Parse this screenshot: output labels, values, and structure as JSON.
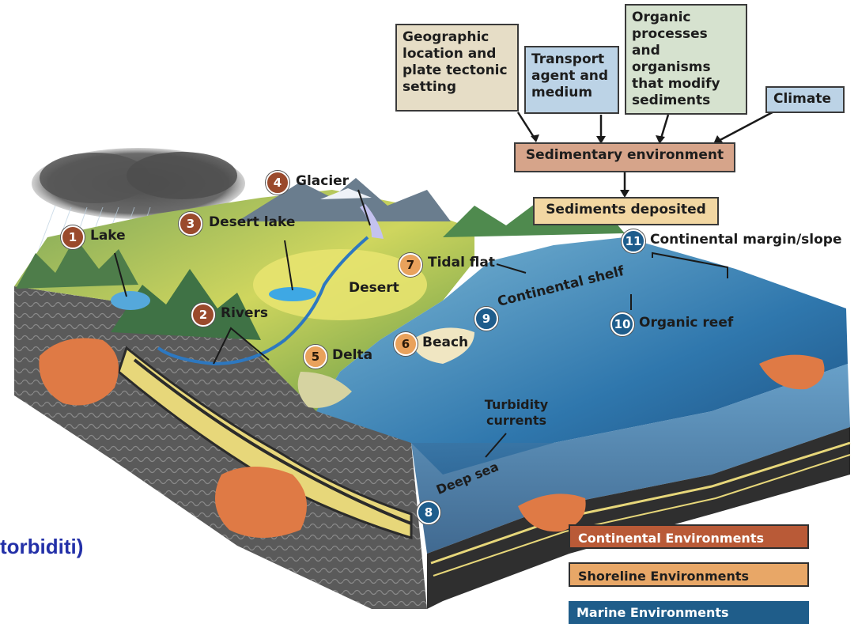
{
  "factors": {
    "geographic": "Geographic location and plate tectonic setting",
    "transport": "Transport agent and medium",
    "organic": "Organic processes and organisms that modify sediments",
    "climate": "Climate"
  },
  "flow": {
    "environment": "Sedimentary environment",
    "deposited": "Sediments deposited"
  },
  "environments": {
    "lake": {
      "num": "1",
      "label": "Lake"
    },
    "rivers": {
      "num": "2",
      "label": "Rivers"
    },
    "desert_lake": {
      "num": "3",
      "label": "Desert lake"
    },
    "glacier": {
      "num": "4",
      "label": "Glacier"
    },
    "delta": {
      "num": "5",
      "label": "Delta"
    },
    "beach": {
      "num": "6",
      "label": "Beach"
    },
    "tidal_flat": {
      "num": "7",
      "label": "Tidal flat"
    },
    "deep_sea": {
      "num": "8",
      "label": "Deep sea"
    },
    "continental_shelf": {
      "num": "9",
      "label": "Continental shelf"
    },
    "organic_reef": {
      "num": "10",
      "label": "Organic reef"
    },
    "continental_margin": {
      "num": "11",
      "label": "Continental margin/slope"
    }
  },
  "extra_labels": {
    "desert": "Desert",
    "turbidity": "Turbidity currents"
  },
  "legend": {
    "continental": "Continental Environments",
    "shoreline": "Shoreline Environments",
    "marine": "Marine Environments"
  },
  "side_caption": "torbiditi)",
  "colors": {
    "continental": "#b95a37",
    "shoreline": "#e8a767",
    "marine": "#1f5d8a",
    "caption": "#2330a8"
  }
}
